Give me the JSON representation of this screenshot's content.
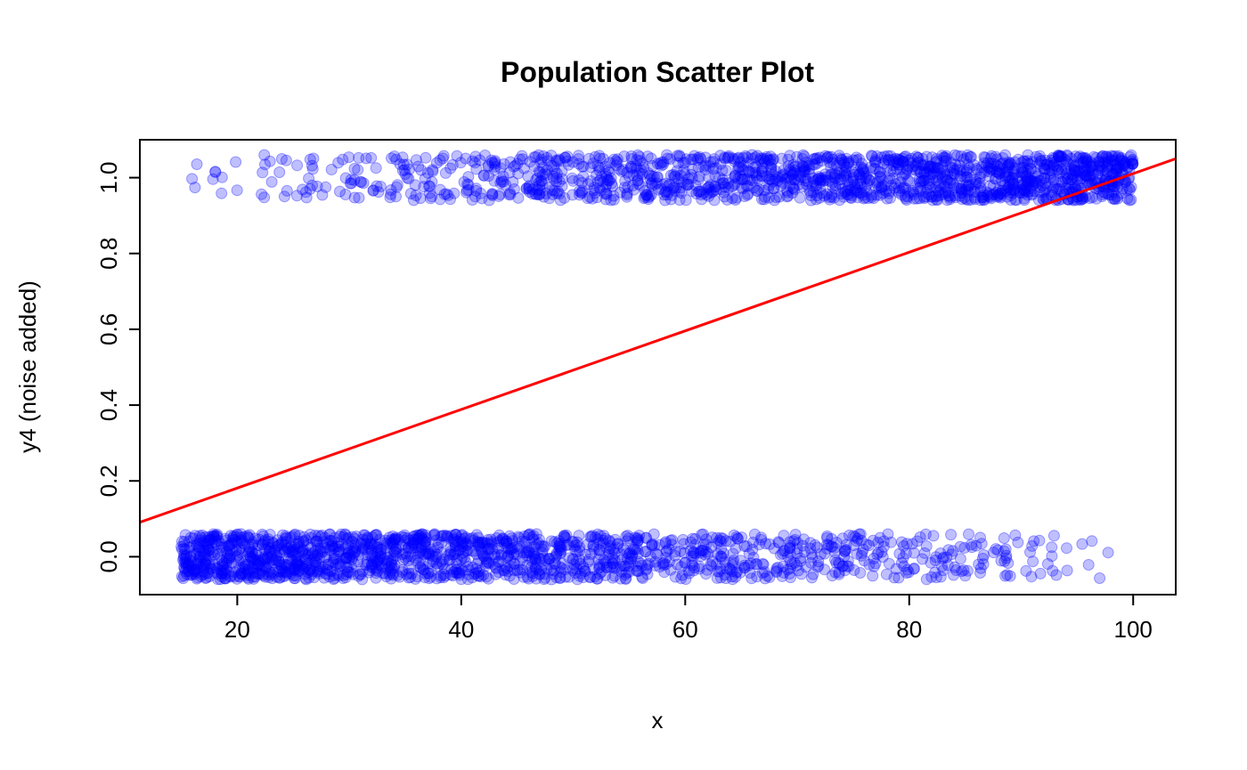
{
  "chart_data": {
    "type": "scatter",
    "title": "Population Scatter Plot",
    "xlabel": "x",
    "ylabel": "y4 (noise added)",
    "xlim": [
      11.3,
      103.8
    ],
    "ylim": [
      -0.1,
      1.1
    ],
    "x_ticks": [
      20,
      40,
      60,
      80,
      100
    ],
    "x_tick_labels": [
      "20",
      "40",
      "60",
      "80",
      "100"
    ],
    "y_ticks": [
      0.0,
      0.2,
      0.4,
      0.6,
      0.8,
      1.0
    ],
    "y_tick_labels": [
      "0.0",
      "0.2",
      "0.4",
      "0.6",
      "0.8",
      "1.0"
    ],
    "grid": false,
    "points": {
      "color": "#0000ff",
      "alpha": 0.25,
      "x_range": [
        15,
        100
      ],
      "clusters": [
        {
          "y_center": 1.0,
          "jitter": 0.06,
          "density": "sparse at low x, dense at high x"
        },
        {
          "y_center": 0.0,
          "jitter": 0.06,
          "density": "dense at low x, sparse at high x"
        }
      ]
    },
    "fit_line": {
      "color": "#ff0000",
      "intercept": -0.0263,
      "slope": 0.01037
    }
  }
}
